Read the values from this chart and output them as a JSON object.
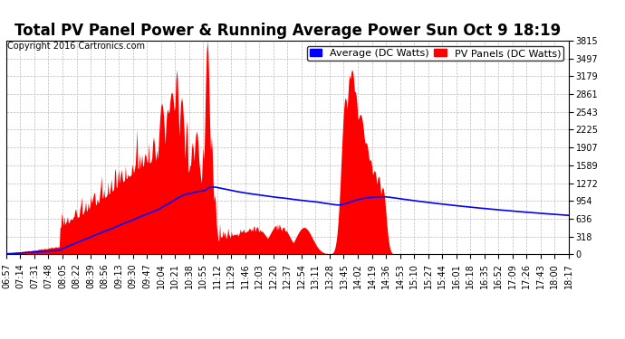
{
  "title": "Total PV Panel Power & Running Average Power Sun Oct 9 18:19",
  "copyright": "Copyright 2016 Cartronics.com",
  "legend_avg": "Average (DC Watts)",
  "legend_pv": "PV Panels (DC Watts)",
  "bg_color": "#ffffff",
  "plot_bg_color": "#ffffff",
  "grid_color": "#bbbbbb",
  "fill_color": "#ff0000",
  "avg_line_color": "#0000ff",
  "ymin": 0.0,
  "ymax": 3814.6,
  "yticks": [
    0.0,
    317.9,
    635.8,
    953.7,
    1271.5,
    1589.4,
    1907.3,
    2225.2,
    2543.1,
    2861.0,
    3178.9,
    3496.8,
    3814.6
  ],
  "xtick_labels": [
    "06:57",
    "07:14",
    "07:31",
    "07:48",
    "08:05",
    "08:22",
    "08:39",
    "08:56",
    "09:13",
    "09:30",
    "09:47",
    "10:04",
    "10:21",
    "10:38",
    "10:55",
    "11:12",
    "11:29",
    "11:46",
    "12:03",
    "12:20",
    "12:37",
    "12:54",
    "13:11",
    "13:28",
    "13:45",
    "14:02",
    "14:19",
    "14:36",
    "14:53",
    "15:10",
    "15:27",
    "15:44",
    "16:01",
    "16:18",
    "16:35",
    "16:52",
    "17:09",
    "17:26",
    "17:43",
    "18:00",
    "18:17"
  ],
  "title_fontsize": 12,
  "copyright_fontsize": 7,
  "tick_fontsize": 7,
  "legend_fontsize": 8
}
